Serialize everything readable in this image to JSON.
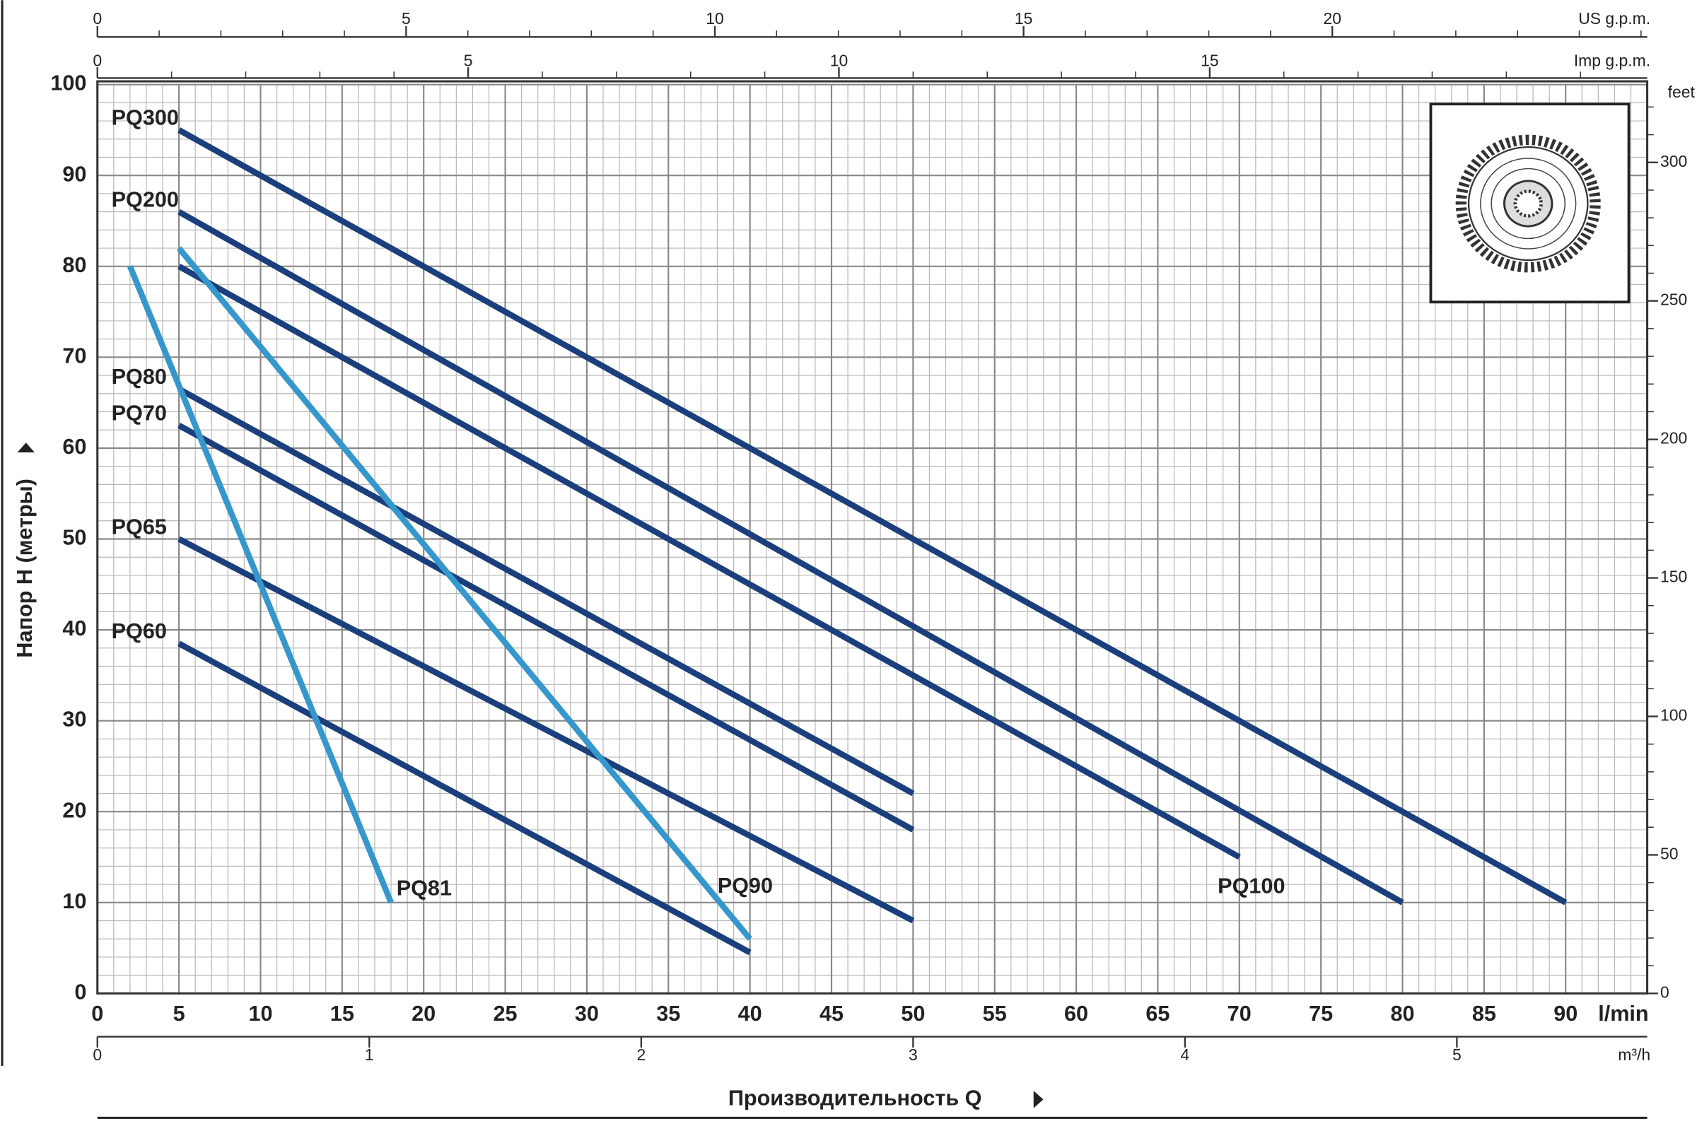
{
  "chart_data": {
    "type": "line",
    "x_label": "Производительность Q",
    "y_label": "Напор H (метры)",
    "x_unit": "l/min",
    "xlim": [
      0,
      95
    ],
    "xticks": [
      0,
      5,
      10,
      15,
      20,
      25,
      30,
      35,
      40,
      45,
      50,
      55,
      60,
      65,
      70,
      75,
      80,
      85,
      90
    ],
    "ylim": [
      0,
      100
    ],
    "yticks": [
      0,
      10,
      20,
      30,
      40,
      50,
      60,
      70,
      80,
      90,
      100
    ],
    "grid": true,
    "top_axis": {
      "label": "US g.p.m.",
      "xlim": [
        0,
        25.1
      ],
      "xticks": [
        0,
        5,
        10,
        15,
        20
      ]
    },
    "top_axis_2": {
      "label": "Imp g.p.m.",
      "xlim": [
        0,
        20.9
      ],
      "xticks": [
        0,
        5,
        10,
        15
      ]
    },
    "bottom_axis_2": {
      "label": "m³/h",
      "xlim": [
        0,
        5.7
      ],
      "xticks": [
        0,
        1,
        2,
        3,
        4,
        5
      ]
    },
    "right_axis": {
      "label": "feet",
      "ylim": [
        0,
        328.1
      ],
      "yticks": [
        0,
        50,
        100,
        150,
        200,
        250,
        300
      ]
    },
    "series": [
      {
        "name": "PQ300",
        "color": "#1b3f7c",
        "x": [
          5,
          90
        ],
        "values": [
          95,
          10
        ]
      },
      {
        "name": "PQ200",
        "color": "#1b3f7c",
        "x": [
          5,
          80
        ],
        "values": [
          86,
          10
        ]
      },
      {
        "name": "PQ100",
        "color": "#1b3f7c",
        "x": [
          5,
          70
        ],
        "values": [
          80,
          15
        ]
      },
      {
        "name": "PQ80",
        "color": "#1b3f7c",
        "x": [
          5,
          50
        ],
        "values": [
          66.5,
          22
        ]
      },
      {
        "name": "PQ70",
        "color": "#1b3f7c",
        "x": [
          5,
          50
        ],
        "values": [
          62.5,
          18
        ]
      },
      {
        "name": "PQ65",
        "color": "#1b3f7c",
        "x": [
          5,
          50
        ],
        "values": [
          50,
          8
        ]
      },
      {
        "name": "PQ60",
        "color": "#1b3f7c",
        "x": [
          5,
          40
        ],
        "values": [
          38.5,
          4.5
        ]
      },
      {
        "name": "PQ81",
        "color": "#3597cc",
        "x": [
          2,
          18
        ],
        "values": [
          80,
          10
        ]
      },
      {
        "name": "PQ90",
        "color": "#3597cc",
        "x": [
          5,
          40
        ],
        "values": [
          82,
          6
        ]
      }
    ]
  }
}
